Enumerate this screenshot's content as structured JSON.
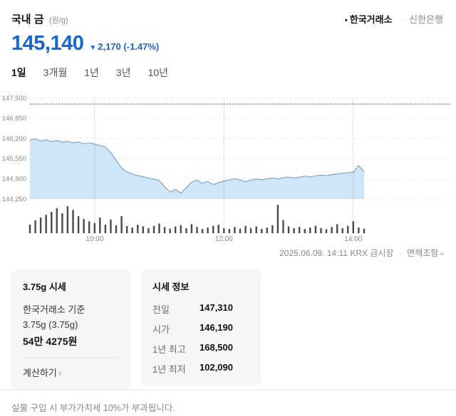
{
  "header": {
    "title": "국내 금",
    "unit": "(원/g)",
    "sources": {
      "bullet": "•",
      "selected": "한국거래소",
      "separator": "·",
      "other": "신한은행"
    }
  },
  "price": {
    "current": "145,140",
    "direction_icon": "▼",
    "change": "2,170",
    "change_pct": "(-1.47%)",
    "down_color": "#1666d0"
  },
  "tabs": [
    "1일",
    "3개월",
    "1년",
    "3년",
    "10년"
  ],
  "active_tab": "1일",
  "chart_data": {
    "type": "area",
    "title": "국내 금 1일 시세 차트",
    "x_ticks": [
      "10:00",
      "12:00",
      "14:00"
    ],
    "x_tick_minutes": [
      600,
      720,
      840
    ],
    "x_start_minute": 540,
    "x_end_minute": 930,
    "y_ticks": [
      147500,
      146850,
      146200,
      145550,
      144900,
      144250
    ],
    "ylim": [
      144250,
      147500
    ],
    "prev_close_line": 147310,
    "times_min": [
      540,
      545,
      550,
      555,
      560,
      565,
      570,
      575,
      580,
      585,
      590,
      595,
      600,
      605,
      610,
      615,
      620,
      625,
      630,
      635,
      640,
      645,
      650,
      655,
      660,
      665,
      670,
      675,
      680,
      685,
      690,
      695,
      700,
      705,
      710,
      715,
      720,
      725,
      730,
      735,
      740,
      745,
      750,
      755,
      760,
      765,
      770,
      775,
      780,
      785,
      790,
      795,
      800,
      805,
      810,
      815,
      820,
      825,
      830,
      835,
      840,
      845,
      850
    ],
    "price": [
      146150,
      146190,
      146120,
      146160,
      146100,
      146140,
      146080,
      146110,
      146060,
      146090,
      146030,
      146060,
      146020,
      145980,
      145930,
      145750,
      145500,
      145250,
      145120,
      145060,
      145010,
      144970,
      144930,
      144890,
      144850,
      144650,
      144480,
      144560,
      144440,
      144620,
      144800,
      144860,
      144760,
      144820,
      144720,
      144780,
      144830,
      144870,
      144910,
      144860,
      144810,
      144860,
      144900,
      144870,
      144900,
      144930,
      144900,
      144940,
      144960,
      144930,
      144960,
      144990,
      144960,
      145000,
      145020,
      145000,
      145040,
      145060,
      145080,
      145100,
      145120,
      145320,
      145140
    ],
    "volume": [
      30,
      45,
      55,
      65,
      75,
      88,
      70,
      95,
      82,
      60,
      50,
      42,
      36,
      55,
      30,
      48,
      28,
      60,
      25,
      20,
      30,
      24,
      18,
      26,
      34,
      22,
      16,
      24,
      28,
      18,
      32,
      22,
      15,
      20,
      26,
      30,
      18,
      15,
      22,
      16,
      26,
      18,
      24,
      15,
      20,
      28,
      100,
      46,
      24,
      18,
      22,
      15,
      20,
      26,
      18,
      14,
      22,
      32,
      18,
      26,
      42,
      20,
      16
    ],
    "area_fill": "#cfe5f8",
    "line_color": "#82a6c6",
    "volume_color": "#4a4a4a",
    "grid_color": "#e6e6e6",
    "prev_close_color": "#555555"
  },
  "meta": {
    "timestamp": "2025.06.09. 14:11",
    "market": "KRX 금시장",
    "separator": "·",
    "disclaimer": "면책조항",
    "chevron": "›"
  },
  "card_375": {
    "title": "3.75g 시세",
    "basis": "한국거래소 기준",
    "weight": "3.75g (3.75g)",
    "price": "54만 4275원",
    "calc_link": "계산하기",
    "chevron": "›"
  },
  "card_info": {
    "title": "시세 정보",
    "rows": [
      {
        "label": "전일",
        "value": "147,310"
      },
      {
        "label": "시가",
        "value": "146,190"
      },
      {
        "label": "1년 최고",
        "value": "168,500"
      },
      {
        "label": "1년 최저",
        "value": "102,090"
      }
    ]
  },
  "footer": {
    "notice": "실물 구입 시 부가가치세 10%가 부과됩니다."
  }
}
